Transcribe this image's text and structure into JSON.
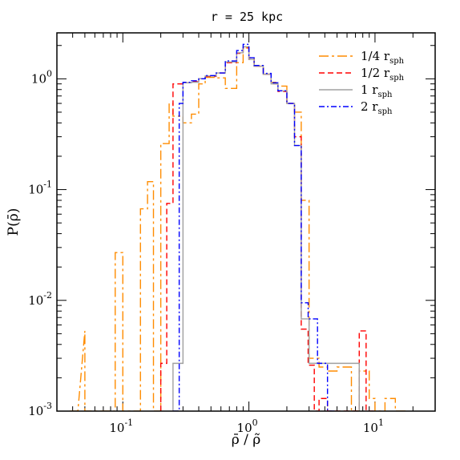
{
  "chart_data": {
    "type": "line",
    "step": true,
    "title": "r = 25 kpc",
    "xlabel": "ρ̄ / ρ̃",
    "ylabel": "P(ρ̄)",
    "xscale": "log",
    "yscale": "log",
    "xlim": [
      0.03,
      30
    ],
    "ylim": [
      0.001,
      2.6
    ],
    "x_ticks": [
      {
        "exp": "-1",
        "value": 0.1
      },
      {
        "exp": "0",
        "value": 1
      },
      {
        "exp": "1",
        "value": 10
      }
    ],
    "y_ticks": [
      {
        "exp": "-3",
        "value": 0.001
      },
      {
        "exp": "-2",
        "value": 0.01
      },
      {
        "exp": "-1",
        "value": 0.1
      },
      {
        "exp": "0",
        "value": 1
      }
    ],
    "tick_base": "10",
    "legend_position": "top-right",
    "series": [
      {
        "name": "1/4 r",
        "sub": "sph",
        "color": "#ff8c00",
        "dash": "longdashdot",
        "x": [
          0.038,
          0.044,
          0.05,
          0.05,
          0.087,
          0.087,
          0.1,
          0.1,
          0.138,
          0.138,
          0.157,
          0.157,
          0.175,
          0.175,
          0.2,
          0.2,
          0.2,
          0.233,
          0.233,
          0.25,
          0.25,
          0.3,
          0.3,
          0.35,
          0.35,
          0.4,
          0.4,
          0.45,
          0.45,
          0.55,
          0.55,
          0.65,
          0.65,
          0.8,
          0.8,
          0.9,
          0.9,
          1.0,
          1.0,
          1.1,
          1.1,
          1.3,
          1.3,
          1.5,
          1.5,
          1.7,
          1.7,
          2.0,
          2.0,
          2.3,
          2.3,
          2.6,
          2.6,
          3.0,
          3.0,
          3.6,
          3.6,
          4.2,
          4.2,
          5.0,
          5.0,
          6.5,
          6.5,
          7.5,
          7.5,
          9.0,
          9.0,
          10.0,
          10.0,
          12.0,
          12.0,
          14.5,
          14.5,
          18.0,
          18.0
        ],
        "y": [
          0.001,
          0.001,
          0.0053,
          0.001,
          0.001,
          0.027,
          0.027,
          0.001,
          0.001,
          0.067,
          0.067,
          0.118,
          0.118,
          0.001,
          0.001,
          0.083,
          0.26,
          0.26,
          0.6,
          0.6,
          0.46,
          0.46,
          0.4,
          0.4,
          0.48,
          0.48,
          0.9,
          0.9,
          1.03,
          1.03,
          1.02,
          1.02,
          0.82,
          0.82,
          1.4,
          1.4,
          1.9,
          1.9,
          1.55,
          1.55,
          1.3,
          1.3,
          1.1,
          1.1,
          0.93,
          0.93,
          0.86,
          0.86,
          0.6,
          0.6,
          0.5,
          0.5,
          0.08,
          0.08,
          0.003,
          0.003,
          0.0025,
          0.0025,
          0.0023,
          0.0023,
          0.0025,
          0.0025,
          0.001,
          0.001,
          0.0023,
          0.0023,
          0.0013,
          0.0013,
          0.001,
          0.001,
          0.0013,
          0.0013,
          0.001,
          0.001,
          0.001
        ]
      },
      {
        "name": "1/2 r",
        "sub": "sph",
        "color": "#ff0000",
        "dash": "dash",
        "x": [
          0.2,
          0.2,
          0.223,
          0.223,
          0.25,
          0.25,
          0.3,
          0.3,
          0.35,
          0.35,
          0.4,
          0.4,
          0.45,
          0.45,
          0.55,
          0.55,
          0.65,
          0.65,
          0.8,
          0.8,
          0.9,
          0.9,
          1.0,
          1.0,
          1.1,
          1.1,
          1.3,
          1.3,
          1.5,
          1.5,
          1.7,
          1.7,
          2.0,
          2.0,
          2.3,
          2.3,
          2.6,
          2.6,
          2.95,
          2.95,
          3.3,
          3.3,
          3.6,
          3.6,
          4.2,
          4.2,
          7.5,
          7.5,
          8.5,
          8.5,
          9.8,
          9.8
        ],
        "y": [
          0.001,
          0.0027,
          0.0027,
          0.075,
          0.075,
          0.9,
          0.9,
          0.92,
          0.92,
          0.94,
          0.94,
          1.0,
          1.0,
          1.05,
          1.05,
          1.13,
          1.13,
          1.4,
          1.4,
          1.7,
          1.7,
          1.9,
          1.9,
          1.5,
          1.5,
          1.3,
          1.3,
          1.1,
          1.1,
          0.9,
          0.9,
          0.77,
          0.77,
          0.6,
          0.6,
          0.3,
          0.3,
          0.0055,
          0.0055,
          0.0026,
          0.0026,
          0.001,
          0.001,
          0.0013,
          0.0013,
          0.001,
          0.001,
          0.0053,
          0.0053,
          0.001,
          0.001,
          0.001
        ]
      },
      {
        "name": "1 r",
        "sub": "sph",
        "color": "#a0a0a0",
        "dash": "solid",
        "x": [
          0.25,
          0.25,
          0.3,
          0.3,
          0.35,
          0.35,
          0.4,
          0.4,
          0.45,
          0.45,
          0.55,
          0.55,
          0.65,
          0.65,
          0.8,
          0.8,
          0.9,
          0.9,
          1.0,
          1.0,
          1.1,
          1.1,
          1.3,
          1.3,
          1.5,
          1.5,
          1.7,
          1.7,
          2.0,
          2.0,
          2.3,
          2.3,
          2.6,
          2.6,
          3.0,
          3.0,
          3.6,
          3.6,
          4.2,
          4.2,
          5.0,
          5.0,
          7.5,
          7.5
        ],
        "y": [
          0.001,
          0.0027,
          0.0027,
          0.92,
          0.92,
          0.93,
          0.93,
          1.0,
          1.0,
          1.06,
          1.06,
          1.13,
          1.13,
          1.42,
          1.42,
          1.72,
          1.72,
          1.95,
          1.95,
          1.5,
          1.5,
          1.3,
          1.3,
          1.1,
          1.1,
          0.9,
          0.9,
          0.78,
          0.78,
          0.6,
          0.6,
          0.25,
          0.25,
          0.0068,
          0.0068,
          0.0027,
          0.0027,
          0.0027,
          0.0027,
          0.0027,
          0.0027,
          0.0027,
          0.0027,
          0.001
        ]
      },
      {
        "name": "2 r",
        "sub": "sph",
        "color": "#0000ff",
        "dash": "dashdot",
        "x": [
          0.25,
          0.25,
          0.28,
          0.28,
          0.3,
          0.3,
          0.35,
          0.35,
          0.4,
          0.4,
          0.45,
          0.45,
          0.55,
          0.55,
          0.65,
          0.65,
          0.8,
          0.8,
          0.9,
          0.9,
          1.0,
          1.0,
          1.1,
          1.1,
          1.3,
          1.3,
          1.5,
          1.5,
          1.7,
          1.7,
          2.0,
          2.0,
          2.3,
          2.3,
          2.6,
          2.6,
          2.95,
          2.95,
          3.5,
          3.5,
          4.2,
          4.2,
          5.0,
          5.0
        ],
        "y": [
          0.001,
          0.001,
          0.001,
          0.6,
          0.6,
          0.93,
          0.93,
          0.96,
          0.96,
          1.0,
          1.0,
          1.07,
          1.07,
          1.13,
          1.13,
          1.45,
          1.45,
          1.8,
          1.8,
          2.05,
          2.05,
          1.55,
          1.55,
          1.32,
          1.32,
          1.12,
          1.12,
          0.92,
          0.92,
          0.78,
          0.78,
          0.6,
          0.6,
          0.25,
          0.25,
          0.0095,
          0.0095,
          0.0068,
          0.0068,
          0.0027,
          0.0027,
          0.001,
          0.001,
          0.001
        ]
      }
    ]
  }
}
